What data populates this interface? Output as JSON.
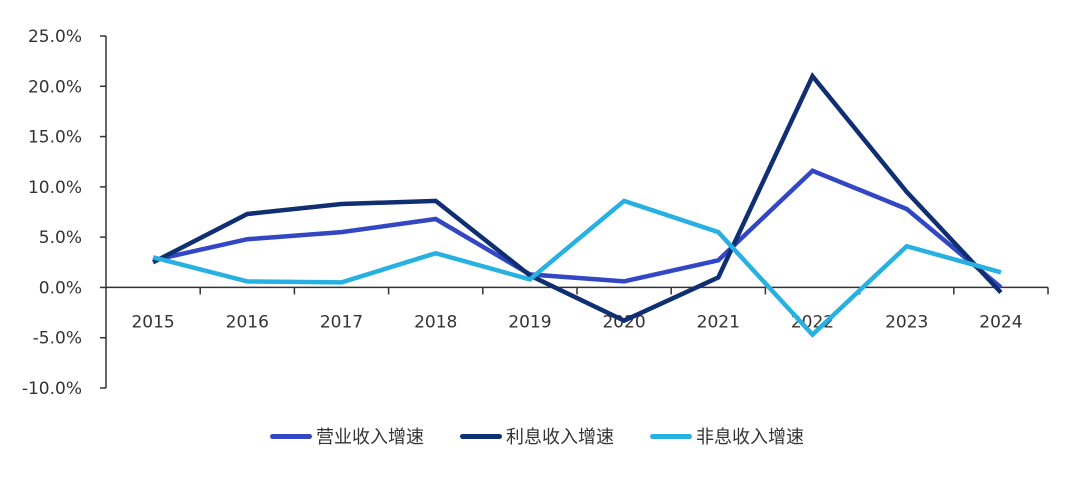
{
  "chart_data": {
    "type": "line",
    "title": "",
    "xlabel": "",
    "ylabel": "",
    "categories": [
      "2015",
      "2016",
      "2017",
      "2018",
      "2019",
      "2020",
      "2021",
      "2022",
      "2023",
      "2024"
    ],
    "ylim": [
      -10.0,
      25.0
    ],
    "y_ticks": [
      25.0,
      20.0,
      15.0,
      10.0,
      5.0,
      0.0,
      -5.0,
      -10.0
    ],
    "y_tick_labels": [
      "25.0%",
      "20.0%",
      "15.0%",
      "10.0%",
      "5.0%",
      "0.0%",
      "-5.0%",
      "-10.0%"
    ],
    "grid": false,
    "legend_position": "bottom",
    "series": [
      {
        "name": "营业收入增速",
        "color": "#3347c4",
        "values": [
          2.7,
          4.8,
          5.5,
          6.8,
          1.3,
          0.6,
          2.7,
          11.6,
          7.8,
          0.0
        ]
      },
      {
        "name": "利息收入增速",
        "color": "#0f2f72",
        "values": [
          2.5,
          7.3,
          8.3,
          8.6,
          1.2,
          -3.3,
          1.0,
          21.0,
          9.5,
          -0.5
        ]
      },
      {
        "name": "非息收入增速",
        "color": "#27b1e0",
        "values": [
          3.0,
          0.6,
          0.5,
          3.4,
          0.8,
          8.6,
          5.5,
          -4.7,
          4.1,
          1.5
        ]
      }
    ]
  },
  "legend": {
    "items": [
      {
        "label": "营业收入增速",
        "color": "#3347c4"
      },
      {
        "label": "利息收入增速",
        "color": "#0f2f72"
      },
      {
        "label": "非息收入增速",
        "color": "#27b1e0"
      }
    ]
  }
}
